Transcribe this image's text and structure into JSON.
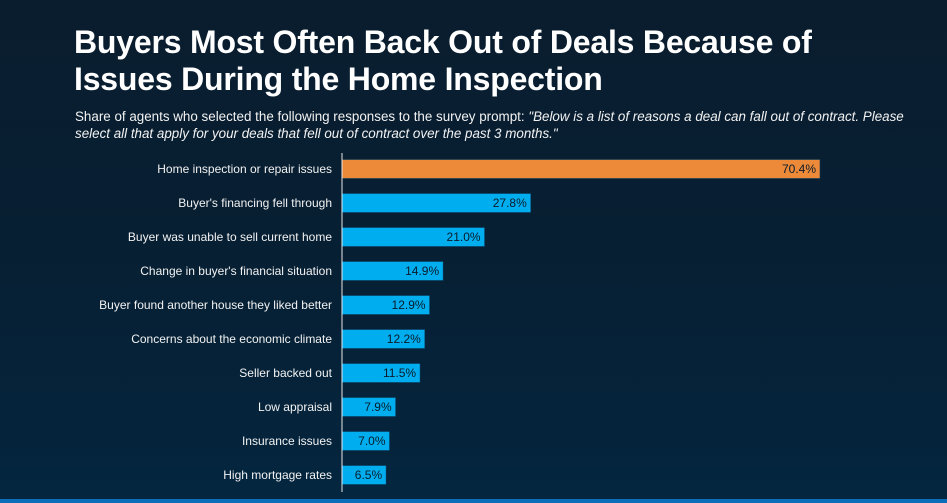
{
  "title": "Buyers Most Often Back Out of Deals Because of Issues During the Home Inspection",
  "subtitle_lead": "Share of agents who selected the following responses to the survey prompt: ",
  "subtitle_quote": "\"Below is a list of reasons a deal can fall out of contract. Please select all that apply for your deals that fell out of contract over the past 3 months.\"",
  "chart_data": {
    "type": "bar",
    "orientation": "horizontal",
    "title": "Buyers Most Often Back Out of Deals Because of Issues During the Home Inspection",
    "xlabel": "",
    "ylabel": "",
    "xlim": [
      0,
      80
    ],
    "grid": false,
    "categories": [
      "Home inspection or repair issues",
      "Buyer's financing fell through",
      "Buyer was unable to sell current home",
      "Change in buyer's financial situation",
      "Buyer found another house they liked better",
      "Concerns about the economic climate",
      "Seller backed out",
      "Low appraisal",
      "Insurance issues",
      "High mortgage rates"
    ],
    "values": [
      70.4,
      27.8,
      21.0,
      14.9,
      12.9,
      12.2,
      11.5,
      7.9,
      7.0,
      6.5
    ],
    "labels": [
      "70.4%",
      "27.8%",
      "21.0%",
      "14.9%",
      "12.9%",
      "12.2%",
      "11.5%",
      "7.9%",
      "7.0%",
      "6.5%"
    ],
    "highlight_color": "#ec8a3a",
    "bar_color": "#00aeef"
  }
}
